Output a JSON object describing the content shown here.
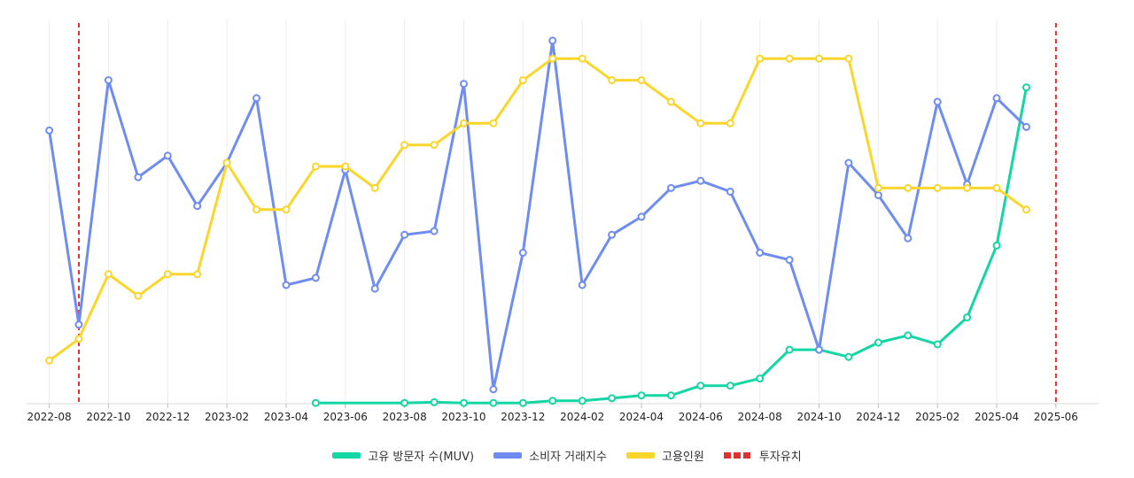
{
  "chart_data": {
    "type": "line",
    "months": [
      "2022-08",
      "2022-09",
      "2022-10",
      "2022-11",
      "2022-12",
      "2023-01",
      "2023-02",
      "2023-03",
      "2023-04",
      "2023-05",
      "2023-06",
      "2023-07",
      "2023-08",
      "2023-09",
      "2023-10",
      "2023-11",
      "2023-12",
      "2024-01",
      "2024-02",
      "2024-03",
      "2024-04",
      "2024-05",
      "2024-06",
      "2024-07",
      "2024-08",
      "2024-09",
      "2024-10",
      "2024-11",
      "2024-12",
      "2025-01",
      "2025-02",
      "2025-03",
      "2025-04",
      "2025-05",
      "2025-06"
    ],
    "tick_labels": [
      "2022-08",
      "2022-10",
      "2022-12",
      "2023-02",
      "2023-04",
      "2023-06",
      "2023-08",
      "2023-10",
      "2023-12",
      "2024-02",
      "2024-04",
      "2024-06",
      "2024-08",
      "2024-10",
      "2024-12",
      "2025-02",
      "2025-04",
      "2025-06"
    ],
    "y_axis_visible": false,
    "grid": "vertical",
    "series": [
      {
        "name": "고유 방문자 수(MUV)",
        "color": "#12d6a3",
        "values": [
          null,
          null,
          null,
          null,
          null,
          null,
          null,
          null,
          null,
          0.2,
          null,
          null,
          0.2,
          0.4,
          0.2,
          0.2,
          0.2,
          0.8,
          0.8,
          1.5,
          2.3,
          2.3,
          5,
          5,
          7,
          15,
          15,
          13,
          17,
          19,
          16.5,
          24,
          44,
          88,
          null
        ]
      },
      {
        "name": "소비자 거래지수",
        "color": "#6f8df0",
        "values": [
          76,
          22,
          90,
          63,
          69,
          55,
          67,
          85,
          33,
          35,
          65,
          32,
          47,
          48,
          89,
          4,
          42,
          101,
          33,
          47,
          52,
          60,
          62,
          59,
          42,
          40,
          15,
          67,
          58,
          46,
          84,
          61,
          85,
          77,
          null
        ]
      },
      {
        "name": "고용인원",
        "color": "#fad62b",
        "values": [
          12,
          18,
          36,
          30,
          36,
          36,
          67,
          54,
          54,
          66,
          66,
          60,
          72,
          72,
          78,
          78,
          90,
          96,
          96,
          90,
          90,
          84,
          78,
          78,
          96,
          96,
          96,
          96,
          60,
          60,
          60,
          60,
          60,
          54,
          null
        ]
      }
    ],
    "markers": {
      "name": "투자유치",
      "color": "#e03131",
      "style": "dashed",
      "x": [
        "2022-09",
        "2025-06"
      ]
    },
    "legend_position": "bottom-center"
  }
}
